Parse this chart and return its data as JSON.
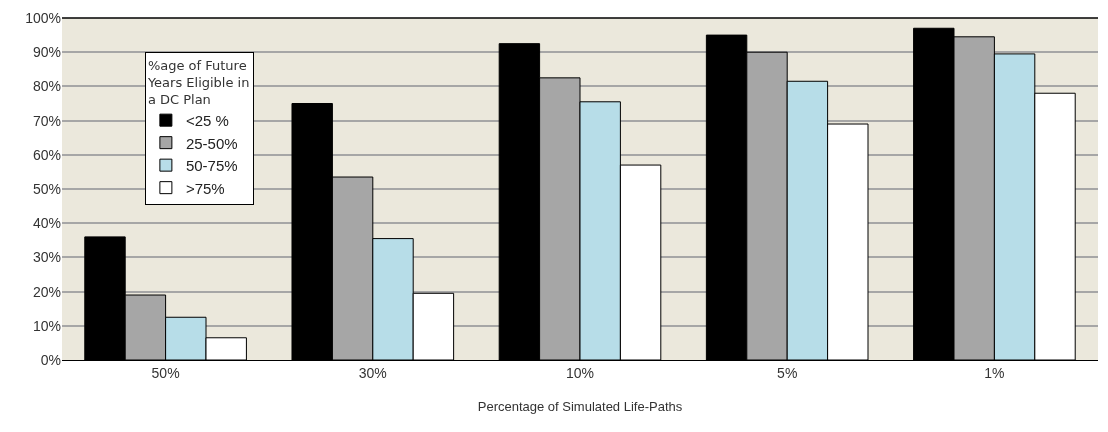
{
  "chart_data": {
    "type": "bar",
    "xlabel": "Percentage of Simulated Life-Paths",
    "legend_title": "%age of Future Years Eligible in a DC Plan",
    "categories": [
      "50%",
      "30%",
      "10%",
      "5%",
      "1%"
    ],
    "series": [
      {
        "name": "<25 %",
        "color": "#000000",
        "values": [
          36,
          75,
          92.5,
          95,
          97
        ]
      },
      {
        "name": "25-50%",
        "color": "#a6a6a6",
        "values": [
          19,
          53.5,
          82.5,
          90,
          94.5
        ]
      },
      {
        "name": "50-75%",
        "color": "#b7dde8",
        "values": [
          12.5,
          35.5,
          75.5,
          81.5,
          89.5
        ]
      },
      {
        "name": ">75%",
        "color": "#ffffff",
        "values": [
          6.5,
          19.5,
          57,
          69,
          78
        ]
      }
    ],
    "ylim": [
      0,
      100
    ],
    "yticks": [
      {
        "value": 0,
        "label": "0%"
      },
      {
        "value": 10,
        "label": "10%"
      },
      {
        "value": 20,
        "label": "20%"
      },
      {
        "value": 30,
        "label": "30%"
      },
      {
        "value": 40,
        "label": "40%"
      },
      {
        "value": 50,
        "label": "50%"
      },
      {
        "value": 60,
        "label": "60%"
      },
      {
        "value": 70,
        "label": "70%"
      },
      {
        "value": 80,
        "label": "80%"
      },
      {
        "value": 90,
        "label": "90%"
      },
      {
        "value": 100,
        "label": "100%"
      }
    ],
    "grid": "y",
    "legend": "top left"
  }
}
